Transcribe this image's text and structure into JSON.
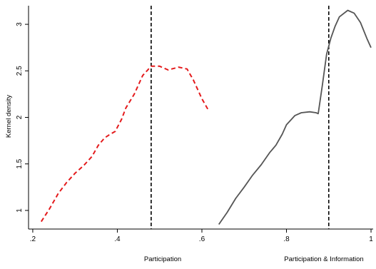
{
  "chart_data": {
    "type": "line",
    "title": "",
    "ylabel": "Kernel density",
    "xlabels": [
      "Participation",
      "Participation & Information"
    ],
    "xlim": [
      0.19,
      1.005
    ],
    "ylim": [
      0.8,
      3.2
    ],
    "xticks": [
      {
        "value": 0.2,
        "label": ".2"
      },
      {
        "value": 0.4,
        "label": ".4"
      },
      {
        "value": 0.6,
        "label": ".6"
      },
      {
        "value": 0.8,
        "label": ".8"
      },
      {
        "value": 1.0,
        "label": "1"
      }
    ],
    "yticks": [
      {
        "value": 1,
        "label": "1"
      },
      {
        "value": 1.5,
        "label": "1.5"
      },
      {
        "value": 2,
        "label": "2"
      },
      {
        "value": 2.5,
        "label": "2.5"
      },
      {
        "value": 3,
        "label": "3"
      }
    ],
    "reference_lines": [
      0.48,
      0.9
    ],
    "grid": false,
    "legend": "none",
    "series": [
      {
        "color": "#e41a1c",
        "style": "dashed",
        "points": [
          [
            0.22,
            0.88
          ],
          [
            0.24,
            1.02
          ],
          [
            0.26,
            1.18
          ],
          [
            0.28,
            1.3
          ],
          [
            0.3,
            1.4
          ],
          [
            0.32,
            1.48
          ],
          [
            0.34,
            1.58
          ],
          [
            0.355,
            1.7
          ],
          [
            0.37,
            1.78
          ],
          [
            0.38,
            1.81
          ],
          [
            0.395,
            1.85
          ],
          [
            0.41,
            1.98
          ],
          [
            0.42,
            2.1
          ],
          [
            0.44,
            2.25
          ],
          [
            0.46,
            2.45
          ],
          [
            0.48,
            2.55
          ],
          [
            0.5,
            2.55
          ],
          [
            0.52,
            2.51
          ],
          [
            0.545,
            2.54
          ],
          [
            0.565,
            2.52
          ],
          [
            0.58,
            2.4
          ],
          [
            0.6,
            2.2
          ],
          [
            0.615,
            2.08
          ]
        ]
      },
      {
        "color": "#555555",
        "style": "solid",
        "points": [
          [
            0.64,
            0.85
          ],
          [
            0.66,
            0.98
          ],
          [
            0.68,
            1.13
          ],
          [
            0.7,
            1.25
          ],
          [
            0.72,
            1.38
          ],
          [
            0.74,
            1.49
          ],
          [
            0.76,
            1.62
          ],
          [
            0.775,
            1.7
          ],
          [
            0.79,
            1.82
          ],
          [
            0.8,
            1.92
          ],
          [
            0.82,
            2.02
          ],
          [
            0.835,
            2.05
          ],
          [
            0.855,
            2.06
          ],
          [
            0.87,
            2.05
          ],
          [
            0.875,
            2.04
          ],
          [
            0.885,
            2.35
          ],
          [
            0.895,
            2.68
          ],
          [
            0.905,
            2.85
          ],
          [
            0.915,
            2.98
          ],
          [
            0.925,
            3.08
          ],
          [
            0.945,
            3.15
          ],
          [
            0.96,
            3.12
          ],
          [
            0.975,
            3.02
          ],
          [
            0.99,
            2.85
          ],
          [
            1.0,
            2.75
          ]
        ]
      }
    ]
  }
}
